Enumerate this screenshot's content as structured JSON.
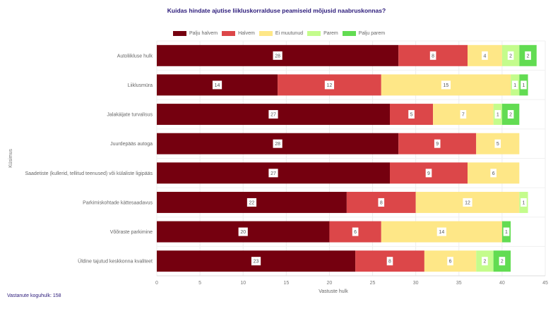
{
  "chart_data": {
    "type": "bar",
    "orientation": "horizontal",
    "stacked": true,
    "title": "Kuidas hindate ajutise liikluskorralduse peamiseid mõjusid naabruskonnas?",
    "xlabel": "Vastuste hulk",
    "ylabel": "Küsimus",
    "xlim": [
      0,
      45
    ],
    "xticks": [
      0,
      5,
      10,
      15,
      20,
      25,
      30,
      35,
      40,
      45
    ],
    "grid": true,
    "legend_position": "top",
    "categories": [
      "Autoliikluse hulk",
      "Liiklusmüra",
      "Jalakäijate turvalisus",
      "Juurdepääs autoga",
      "Saadetiste (kullerid, tellitud teenused) või külaliste ligipääs",
      "Parkimiskohtade kättesaadavus",
      "Võõraste parkimine",
      "Üldine tajutud keskkonna kvaliteet"
    ],
    "series": [
      {
        "name": "Palju halvem",
        "color": "#75000f",
        "values": [
          28,
          14,
          27,
          28,
          27,
          22,
          20,
          23
        ]
      },
      {
        "name": "Halvem",
        "color": "#dc4749",
        "values": [
          8,
          12,
          5,
          9,
          9,
          8,
          6,
          8
        ]
      },
      {
        "name": "Ei muutunud",
        "color": "#fee787",
        "values": [
          4,
          15,
          7,
          5,
          6,
          12,
          14,
          6
        ]
      },
      {
        "name": "Parem",
        "color": "#c4fc8c",
        "values": [
          2,
          1,
          1,
          0,
          0,
          1,
          0,
          2
        ]
      },
      {
        "name": "Palju parem",
        "color": "#62dc52",
        "values": [
          2,
          1,
          2,
          0,
          0,
          0,
          1,
          2
        ]
      }
    ]
  },
  "footer": "Vastanute koguhulk: 158"
}
